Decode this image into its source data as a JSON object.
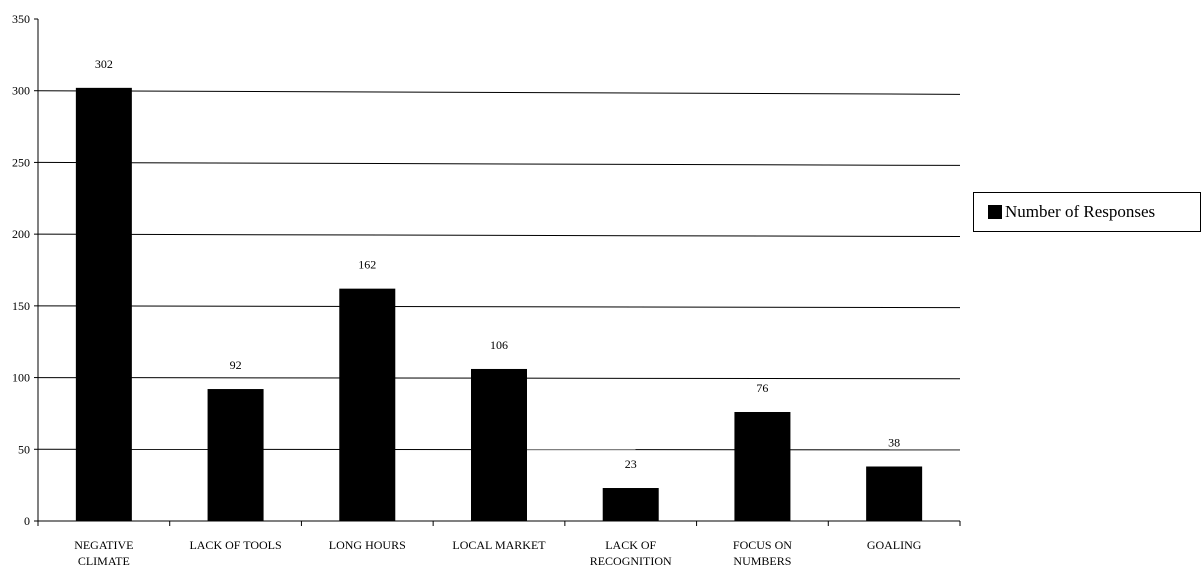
{
  "chart_data": {
    "type": "bar",
    "categories": [
      [
        "NEGATIVE",
        "CLIMATE"
      ],
      [
        "LACK OF TOOLS"
      ],
      [
        "LONG HOURS"
      ],
      [
        "LOCAL MARKET"
      ],
      [
        "LACK OF",
        "RECOGNITION"
      ],
      [
        "FOCUS ON",
        "NUMBERS"
      ],
      [
        "GOALING"
      ]
    ],
    "series": [
      {
        "name": "Number of Responses",
        "values": [
          302,
          92,
          162,
          106,
          23,
          76,
          38
        ],
        "color": "#000000"
      }
    ],
    "data_labels": [
      "302",
      "92",
      "162",
      "106",
      "23",
      "76",
      "38"
    ],
    "y_ticks": [
      0,
      50,
      100,
      150,
      200,
      250,
      300,
      350
    ],
    "ylim": [
      0,
      350
    ],
    "grid": true,
    "legend_position": "right"
  }
}
